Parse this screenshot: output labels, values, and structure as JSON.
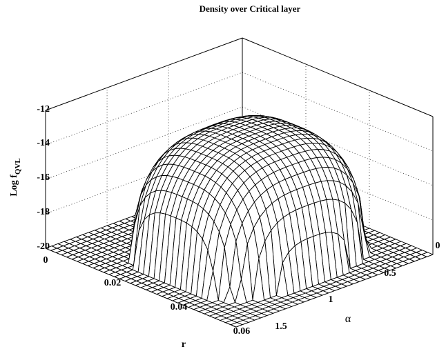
{
  "chart_data": {
    "type": "surface",
    "title": "Density over Critical layer",
    "xlabel": "r",
    "ylabel": "α",
    "zlabel_main": "Log f",
    "zlabel_sub": "QVL",
    "x_ticks": [
      "0",
      "0.02",
      "0.04",
      "0.06"
    ],
    "y_ticks": [
      "0",
      "0.5",
      "1",
      "1.5"
    ],
    "z_ticks": [
      "-12",
      "-14",
      "-16",
      "-18",
      "-20"
    ],
    "xlim": [
      0,
      0.06
    ],
    "ylim": [
      0,
      1.6
    ],
    "zlim": [
      -20,
      -12
    ],
    "grid": true,
    "surface": {
      "shape": "dome",
      "peak_log_f": -12.8,
      "floor_log_f": -20,
      "peak_r": 0.035,
      "peak_alpha": 0.8,
      "plateau_r": [
        0.012,
        0.054
      ],
      "plateau_alpha": [
        0.15,
        1.45
      ]
    }
  }
}
